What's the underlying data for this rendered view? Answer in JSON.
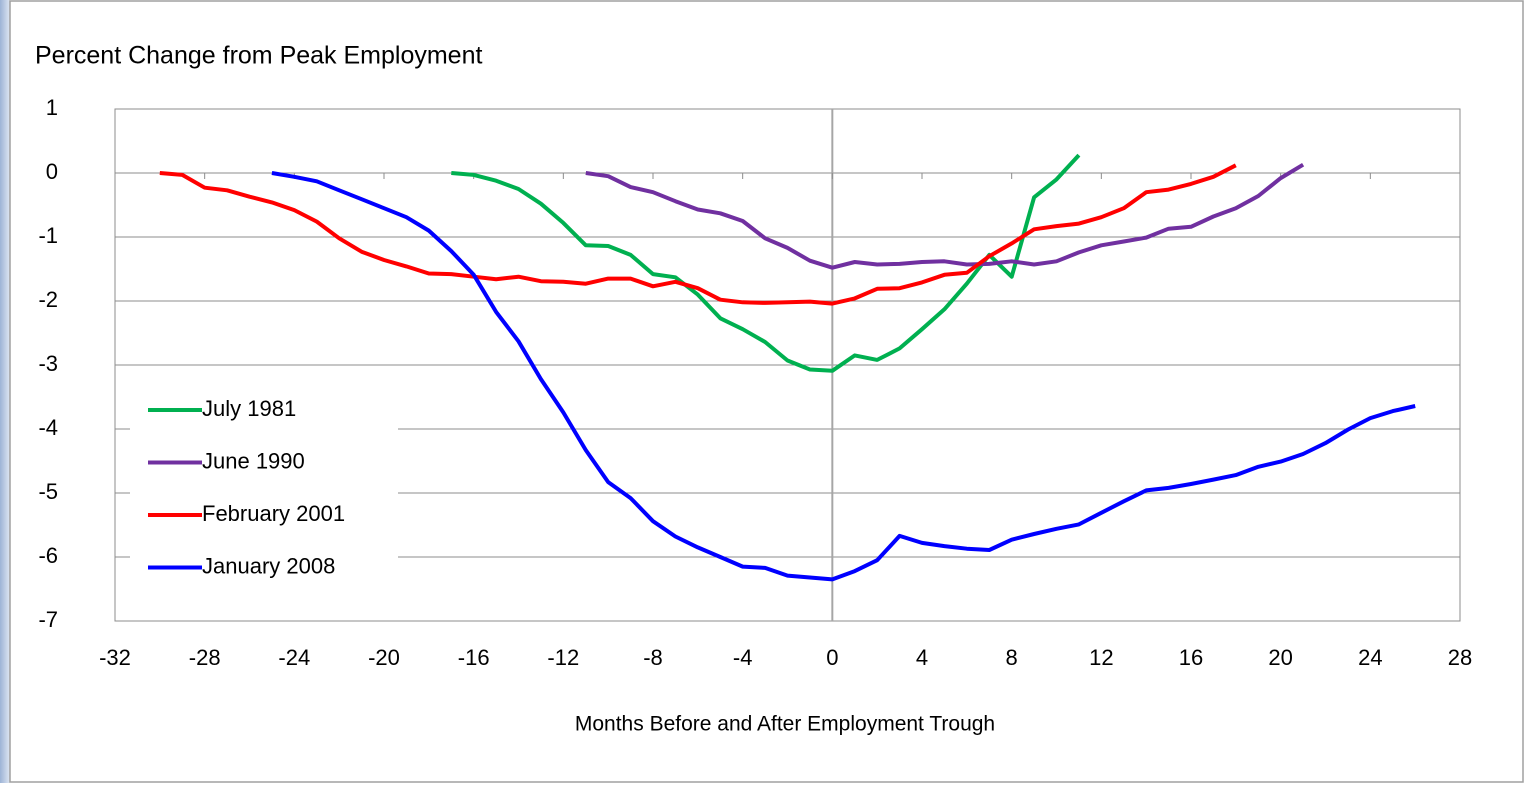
{
  "chart_data": {
    "type": "line",
    "title": "Percent Change from Peak Employment",
    "xlabel": "Months Before and After Employment Trough",
    "xlim": [
      -32,
      28
    ],
    "xticks": [
      -32,
      -28,
      -24,
      -20,
      -16,
      -12,
      -8,
      -4,
      0,
      4,
      8,
      12,
      16,
      20,
      24,
      28
    ],
    "ylim": [
      -7,
      1
    ],
    "yticks": [
      1,
      0,
      -1,
      -2,
      -3,
      -4,
      -5,
      -6,
      -7
    ],
    "grid": true,
    "legend": "lower left",
    "series": [
      {
        "name": "July 1981",
        "color": "#00b050",
        "x": [
          -17,
          -16,
          -15,
          -14,
          -13,
          -12,
          -11,
          -10,
          -9,
          -8,
          -7,
          -6,
          -5,
          -4,
          -3,
          -2,
          -1,
          0,
          1,
          2,
          3,
          4,
          5,
          6,
          7,
          8,
          9,
          10,
          11
        ],
        "values": [
          0,
          -0.03,
          -0.12,
          -0.25,
          -0.48,
          -0.78,
          -1.13,
          -1.14,
          -1.28,
          -1.58,
          -1.63,
          -1.9,
          -2.27,
          -2.44,
          -2.64,
          -2.93,
          -3.07,
          -3.09,
          -2.85,
          -2.92,
          -2.74,
          -2.44,
          -2.13,
          -1.73,
          -1.28,
          -1.62,
          -0.38,
          -0.1,
          0.28
        ]
      },
      {
        "name": "June 1990",
        "color": "#7030a0",
        "x": [
          -11,
          -10,
          -9,
          -8,
          -7,
          -6,
          -5,
          -4,
          -3,
          -2,
          -1,
          0,
          1,
          2,
          3,
          4,
          5,
          6,
          7,
          8,
          9,
          10,
          11,
          12,
          13,
          14,
          15,
          16,
          17,
          18,
          19,
          20,
          21
        ],
        "values": [
          0,
          -0.05,
          -0.22,
          -0.3,
          -0.44,
          -0.57,
          -0.63,
          -0.75,
          -1.02,
          -1.17,
          -1.37,
          -1.48,
          -1.39,
          -1.43,
          -1.42,
          -1.39,
          -1.38,
          -1.43,
          -1.42,
          -1.38,
          -1.43,
          -1.38,
          -1.24,
          -1.13,
          -1.07,
          -1.01,
          -0.87,
          -0.84,
          -0.68,
          -0.55,
          -0.36,
          -0.08,
          0.13
        ]
      },
      {
        "name": "February 2001",
        "color": "#ff0000",
        "x": [
          -30,
          -29,
          -28,
          -27,
          -26,
          -25,
          -24,
          -23,
          -22,
          -21,
          -20,
          -19,
          -18,
          -17,
          -16,
          -15,
          -14,
          -13,
          -12,
          -11,
          -10,
          -9,
          -8,
          -7,
          -6,
          -5,
          -4,
          -3,
          -2,
          -1,
          0,
          1,
          2,
          3,
          4,
          5,
          6,
          7,
          8,
          9,
          10,
          11,
          12,
          13,
          14,
          15,
          16,
          17,
          18
        ],
        "values": [
          0,
          -0.03,
          -0.23,
          -0.27,
          -0.37,
          -0.46,
          -0.58,
          -0.76,
          -1.02,
          -1.23,
          -1.36,
          -1.46,
          -1.57,
          -1.58,
          -1.62,
          -1.66,
          -1.62,
          -1.69,
          -1.7,
          -1.73,
          -1.65,
          -1.65,
          -1.77,
          -1.7,
          -1.8,
          -1.98,
          -2.02,
          -2.03,
          -2.02,
          -2.01,
          -2.04,
          -1.96,
          -1.81,
          -1.8,
          -1.71,
          -1.59,
          -1.56,
          -1.3,
          -1.1,
          -0.88,
          -0.83,
          -0.79,
          -0.69,
          -0.55,
          -0.3,
          -0.26,
          -0.17,
          -0.06,
          0.12
        ]
      },
      {
        "name": "January 2008",
        "color": "#0000ff",
        "x": [
          -25,
          -24,
          -23,
          -22,
          -21,
          -20,
          -19,
          -18,
          -17,
          -16,
          -15,
          -14,
          -13,
          -12,
          -11,
          -10,
          -9,
          -8,
          -7,
          -6,
          -5,
          -4,
          -3,
          -2,
          -1,
          0,
          1,
          2,
          3,
          4,
          5,
          6,
          7,
          8,
          9,
          10,
          11,
          12,
          13,
          14,
          15,
          16,
          17,
          18,
          19,
          20,
          21,
          22,
          23,
          24,
          25,
          26
        ],
        "values": [
          0,
          -0.06,
          -0.13,
          -0.27,
          -0.41,
          -0.55,
          -0.69,
          -0.9,
          -1.22,
          -1.59,
          -2.17,
          -2.63,
          -3.22,
          -3.74,
          -4.33,
          -4.83,
          -5.08,
          -5.44,
          -5.68,
          -5.85,
          -6.0,
          -6.15,
          -6.17,
          -6.29,
          -6.32,
          -6.35,
          -6.22,
          -6.05,
          -5.67,
          -5.78,
          -5.83,
          -5.87,
          -5.89,
          -5.73,
          -5.64,
          -5.56,
          -5.49,
          -5.31,
          -5.13,
          -4.96,
          -4.92,
          -4.86,
          -4.79,
          -4.72,
          -4.59,
          -4.51,
          -4.39,
          -4.22,
          -4.01,
          -3.83,
          -3.72,
          -3.64
        ]
      }
    ]
  }
}
